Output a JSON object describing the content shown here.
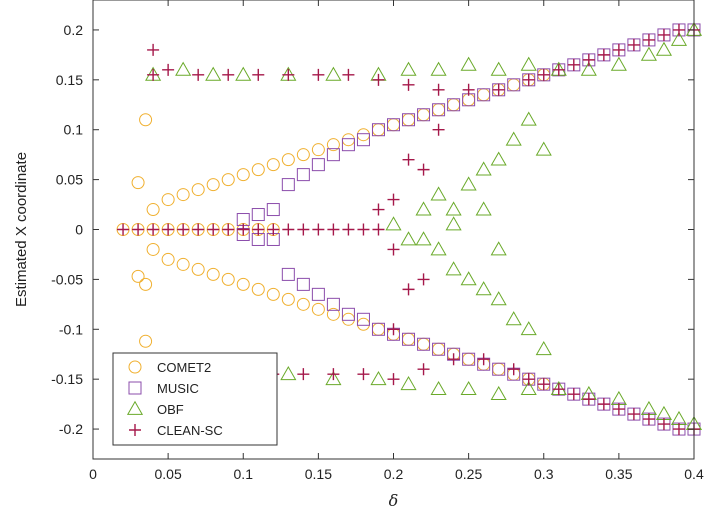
{
  "chart_data": {
    "type": "scatter",
    "title": "",
    "xlabel": "δ",
    "ylabel": "Estimated X coordinate",
    "xlim": [
      0,
      0.4
    ],
    "ylim": [
      -0.23,
      0.23
    ],
    "xticks": [
      0,
      0.05,
      0.1,
      0.15,
      0.2,
      0.25,
      0.3,
      0.35,
      0.4
    ],
    "xtick_labels": [
      "0",
      "0.05",
      "0.1",
      "0.15",
      "0.2",
      "0.25",
      "0.3",
      "0.35",
      "0.4"
    ],
    "yticks": [
      0.2,
      0.15,
      0.1,
      0.05,
      0,
      -0.05,
      -0.1,
      -0.15,
      -0.2
    ],
    "ytick_labels": [
      "0.2",
      "0.15",
      "0.1",
      "0.05",
      "0",
      "-0.05",
      "-0.1",
      "-0.15",
      "-0.2"
    ],
    "grid": false,
    "legend_position": "bottom-left",
    "series": [
      {
        "name": "COMET2",
        "marker": "circle",
        "color": "#f0b030",
        "points": [
          [
            0.02,
            0
          ],
          [
            0.03,
            0
          ],
          [
            0.04,
            0
          ],
          [
            0.05,
            0
          ],
          [
            0.06,
            0
          ],
          [
            0.07,
            0
          ],
          [
            0.08,
            0
          ],
          [
            0.09,
            0
          ],
          [
            0.1,
            0
          ],
          [
            0.11,
            0
          ],
          [
            0.12,
            0
          ],
          [
            0.03,
            0.047
          ],
          [
            0.04,
            0.02
          ],
          [
            0.05,
            0.03
          ],
          [
            0.06,
            0.035
          ],
          [
            0.07,
            0.04
          ],
          [
            0.08,
            0.045
          ],
          [
            0.09,
            0.05
          ],
          [
            0.1,
            0.055
          ],
          [
            0.11,
            0.06
          ],
          [
            0.12,
            0.065
          ],
          [
            0.13,
            0.07
          ],
          [
            0.14,
            0.075
          ],
          [
            0.15,
            0.08
          ],
          [
            0.16,
            0.085
          ],
          [
            0.17,
            0.09
          ],
          [
            0.18,
            0.095
          ],
          [
            0.19,
            0.1
          ],
          [
            0.2,
            0.105
          ],
          [
            0.21,
            0.11
          ],
          [
            0.22,
            0.115
          ],
          [
            0.23,
            0.12
          ],
          [
            0.24,
            0.125
          ],
          [
            0.25,
            0.13
          ],
          [
            0.26,
            0.135
          ],
          [
            0.27,
            0.14
          ],
          [
            0.28,
            0.145
          ],
          [
            0.29,
            0.15
          ],
          [
            0.3,
            0.155
          ],
          [
            0.03,
            -0.047
          ],
          [
            0.04,
            -0.02
          ],
          [
            0.05,
            -0.03
          ],
          [
            0.06,
            -0.035
          ],
          [
            0.07,
            -0.04
          ],
          [
            0.08,
            -0.045
          ],
          [
            0.09,
            -0.05
          ],
          [
            0.1,
            -0.055
          ],
          [
            0.11,
            -0.06
          ],
          [
            0.12,
            -0.065
          ],
          [
            0.13,
            -0.07
          ],
          [
            0.14,
            -0.075
          ],
          [
            0.15,
            -0.08
          ],
          [
            0.16,
            -0.085
          ],
          [
            0.17,
            -0.09
          ],
          [
            0.18,
            -0.095
          ],
          [
            0.19,
            -0.1
          ],
          [
            0.2,
            -0.105
          ],
          [
            0.21,
            -0.11
          ],
          [
            0.22,
            -0.115
          ],
          [
            0.23,
            -0.12
          ],
          [
            0.24,
            -0.125
          ],
          [
            0.25,
            -0.13
          ],
          [
            0.26,
            -0.135
          ],
          [
            0.27,
            -0.14
          ],
          [
            0.28,
            -0.145
          ],
          [
            0.29,
            -0.15
          ],
          [
            0.3,
            -0.155
          ],
          [
            0.035,
            0.11
          ],
          [
            0.035,
            -0.055
          ],
          [
            0.035,
            -0.112
          ]
        ]
      },
      {
        "name": "MUSIC",
        "marker": "square",
        "color": "#8b4cab",
        "points": [
          [
            0.1,
            0.01
          ],
          [
            0.11,
            0.015
          ],
          [
            0.12,
            0.02
          ],
          [
            0.1,
            -0.005
          ],
          [
            0.11,
            -0.01
          ],
          [
            0.13,
            0.045
          ],
          [
            0.14,
            0.055
          ],
          [
            0.15,
            0.065
          ],
          [
            0.16,
            0.075
          ],
          [
            0.17,
            0.085
          ],
          [
            0.18,
            0.09
          ],
          [
            0.19,
            0.1
          ],
          [
            0.2,
            0.105
          ],
          [
            0.21,
            0.11
          ],
          [
            0.22,
            0.115
          ],
          [
            0.23,
            0.12
          ],
          [
            0.24,
            0.125
          ],
          [
            0.25,
            0.13
          ],
          [
            0.26,
            0.135
          ],
          [
            0.27,
            0.14
          ],
          [
            0.28,
            0.145
          ],
          [
            0.29,
            0.15
          ],
          [
            0.3,
            0.155
          ],
          [
            0.31,
            0.16
          ],
          [
            0.32,
            0.165
          ],
          [
            0.33,
            0.17
          ],
          [
            0.34,
            0.175
          ],
          [
            0.35,
            0.18
          ],
          [
            0.36,
            0.185
          ],
          [
            0.37,
            0.19
          ],
          [
            0.38,
            0.195
          ],
          [
            0.39,
            0.2
          ],
          [
            0.4,
            0.2
          ],
          [
            0.12,
            -0.01
          ],
          [
            0.13,
            -0.045
          ],
          [
            0.14,
            -0.055
          ],
          [
            0.15,
            -0.065
          ],
          [
            0.16,
            -0.075
          ],
          [
            0.17,
            -0.085
          ],
          [
            0.18,
            -0.09
          ],
          [
            0.19,
            -0.1
          ],
          [
            0.2,
            -0.105
          ],
          [
            0.21,
            -0.11
          ],
          [
            0.22,
            -0.115
          ],
          [
            0.23,
            -0.12
          ],
          [
            0.24,
            -0.125
          ],
          [
            0.25,
            -0.13
          ],
          [
            0.26,
            -0.135
          ],
          [
            0.27,
            -0.14
          ],
          [
            0.28,
            -0.145
          ],
          [
            0.29,
            -0.15
          ],
          [
            0.3,
            -0.155
          ],
          [
            0.31,
            -0.16
          ],
          [
            0.32,
            -0.165
          ],
          [
            0.33,
            -0.17
          ],
          [
            0.34,
            -0.175
          ],
          [
            0.35,
            -0.18
          ],
          [
            0.36,
            -0.185
          ],
          [
            0.37,
            -0.19
          ],
          [
            0.38,
            -0.195
          ],
          [
            0.39,
            -0.2
          ],
          [
            0.4,
            -0.2
          ]
        ]
      },
      {
        "name": "OBF",
        "marker": "triangle",
        "color": "#6aaa2a",
        "points": [
          [
            0.04,
            0.155
          ],
          [
            0.06,
            0.16
          ],
          [
            0.08,
            0.155
          ],
          [
            0.1,
            0.155
          ],
          [
            0.13,
            0.155
          ],
          [
            0.16,
            0.155
          ],
          [
            0.19,
            0.155
          ],
          [
            0.21,
            0.16
          ],
          [
            0.23,
            0.16
          ],
          [
            0.25,
            0.165
          ],
          [
            0.27,
            0.16
          ],
          [
            0.29,
            0.165
          ],
          [
            0.31,
            0.16
          ],
          [
            0.33,
            0.16
          ],
          [
            0.35,
            0.165
          ],
          [
            0.37,
            0.175
          ],
          [
            0.38,
            0.18
          ],
          [
            0.39,
            0.19
          ],
          [
            0.4,
            0.2
          ],
          [
            0.04,
            -0.15
          ],
          [
            0.07,
            -0.145
          ],
          [
            0.1,
            -0.145
          ],
          [
            0.13,
            -0.145
          ],
          [
            0.16,
            -0.15
          ],
          [
            0.19,
            -0.15
          ],
          [
            0.21,
            -0.155
          ],
          [
            0.23,
            -0.16
          ],
          [
            0.25,
            -0.16
          ],
          [
            0.27,
            -0.165
          ],
          [
            0.29,
            -0.16
          ],
          [
            0.31,
            -0.16
          ],
          [
            0.33,
            -0.165
          ],
          [
            0.35,
            -0.17
          ],
          [
            0.37,
            -0.18
          ],
          [
            0.38,
            -0.185
          ],
          [
            0.39,
            -0.19
          ],
          [
            0.4,
            -0.195
          ],
          [
            0.2,
            0.005
          ],
          [
            0.21,
            -0.01
          ],
          [
            0.22,
            0.02
          ],
          [
            0.23,
            0.035
          ],
          [
            0.24,
            0.02
          ],
          [
            0.25,
            0.045
          ],
          [
            0.26,
            0.06
          ],
          [
            0.27,
            0.07
          ],
          [
            0.28,
            0.09
          ],
          [
            0.29,
            0.11
          ],
          [
            0.3,
            0.08
          ],
          [
            0.22,
            -0.01
          ],
          [
            0.23,
            -0.02
          ],
          [
            0.24,
            -0.04
          ],
          [
            0.25,
            -0.05
          ],
          [
            0.26,
            -0.06
          ],
          [
            0.27,
            -0.07
          ],
          [
            0.28,
            -0.09
          ],
          [
            0.29,
            -0.1
          ],
          [
            0.3,
            -0.12
          ],
          [
            0.24,
            0.005
          ],
          [
            0.26,
            0.02
          ],
          [
            0.27,
            -0.02
          ]
        ]
      },
      {
        "name": "CLEAN-SC",
        "marker": "plus",
        "color": "#a5184a",
        "points": [
          [
            0.02,
            0
          ],
          [
            0.03,
            0
          ],
          [
            0.04,
            0
          ],
          [
            0.05,
            0
          ],
          [
            0.06,
            0
          ],
          [
            0.07,
            0
          ],
          [
            0.08,
            0
          ],
          [
            0.09,
            0
          ],
          [
            0.1,
            0
          ],
          [
            0.11,
            0
          ],
          [
            0.12,
            0
          ],
          [
            0.13,
            0
          ],
          [
            0.14,
            0
          ],
          [
            0.15,
            0
          ],
          [
            0.16,
            0
          ],
          [
            0.17,
            0
          ],
          [
            0.18,
            0
          ],
          [
            0.19,
            0
          ],
          [
            0.04,
            0.18
          ],
          [
            0.04,
            0.155
          ],
          [
            0.05,
            0.16
          ],
          [
            0.07,
            0.155
          ],
          [
            0.09,
            0.155
          ],
          [
            0.11,
            0.155
          ],
          [
            0.13,
            0.155
          ],
          [
            0.15,
            0.155
          ],
          [
            0.17,
            0.155
          ],
          [
            0.19,
            0.15
          ],
          [
            0.21,
            0.145
          ],
          [
            0.23,
            0.14
          ],
          [
            0.25,
            0.14
          ],
          [
            0.27,
            0.14
          ],
          [
            0.29,
            0.15
          ],
          [
            0.3,
            0.155
          ],
          [
            0.31,
            0.16
          ],
          [
            0.32,
            0.165
          ],
          [
            0.33,
            0.17
          ],
          [
            0.34,
            0.175
          ],
          [
            0.35,
            0.18
          ],
          [
            0.36,
            0.185
          ],
          [
            0.37,
            0.19
          ],
          [
            0.38,
            0.195
          ],
          [
            0.39,
            0.2
          ],
          [
            0.4,
            0.2
          ],
          [
            0.04,
            -0.145
          ],
          [
            0.06,
            -0.145
          ],
          [
            0.08,
            -0.145
          ],
          [
            0.1,
            -0.145
          ],
          [
            0.12,
            -0.145
          ],
          [
            0.14,
            -0.145
          ],
          [
            0.16,
            -0.145
          ],
          [
            0.18,
            -0.145
          ],
          [
            0.2,
            -0.15
          ],
          [
            0.22,
            -0.14
          ],
          [
            0.24,
            -0.13
          ],
          [
            0.26,
            -0.13
          ],
          [
            0.28,
            -0.14
          ],
          [
            0.29,
            -0.15
          ],
          [
            0.3,
            -0.155
          ],
          [
            0.31,
            -0.16
          ],
          [
            0.32,
            -0.165
          ],
          [
            0.33,
            -0.17
          ],
          [
            0.34,
            -0.175
          ],
          [
            0.35,
            -0.18
          ],
          [
            0.36,
            -0.185
          ],
          [
            0.37,
            -0.19
          ],
          [
            0.38,
            -0.195
          ],
          [
            0.39,
            -0.2
          ],
          [
            0.4,
            -0.2
          ],
          [
            0.2,
            0.03
          ],
          [
            0.21,
            0.07
          ],
          [
            0.22,
            0.06
          ],
          [
            0.23,
            0.1
          ],
          [
            0.2,
            -0.02
          ],
          [
            0.21,
            -0.06
          ],
          [
            0.22,
            -0.05
          ],
          [
            0.2,
            -0.1
          ],
          [
            0.19,
            0.02
          ]
        ]
      }
    ]
  }
}
